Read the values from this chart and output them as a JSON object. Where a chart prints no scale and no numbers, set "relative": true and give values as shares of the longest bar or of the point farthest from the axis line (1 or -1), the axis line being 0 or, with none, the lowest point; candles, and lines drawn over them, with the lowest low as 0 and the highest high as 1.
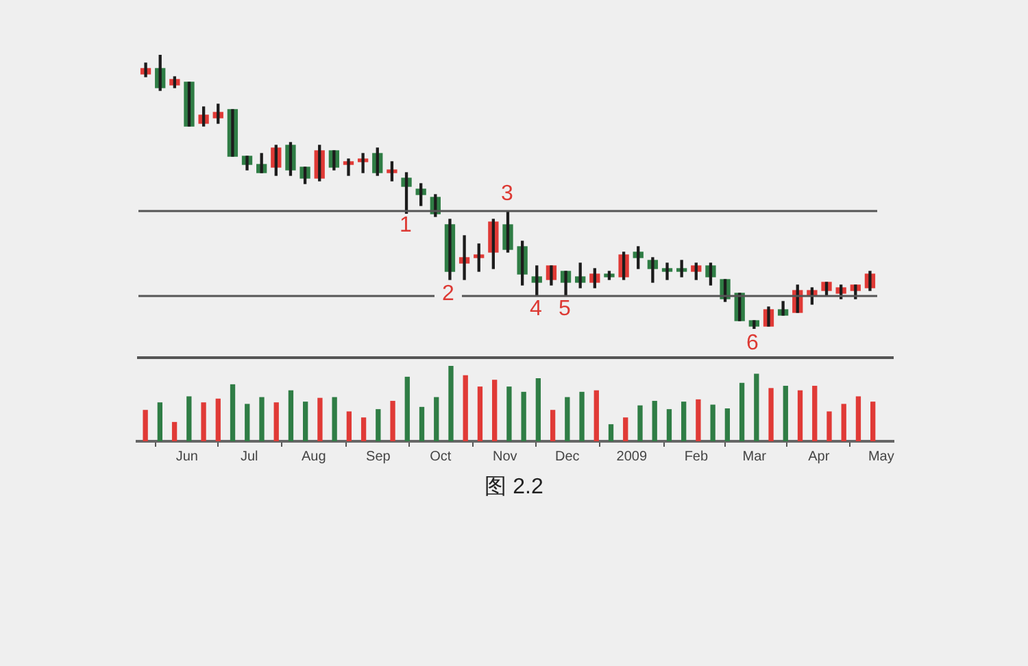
{
  "chart_data": [
    {
      "type": "candlestick",
      "relative": true,
      "tick_labels": false,
      "categories": [
        null,
        null,
        null,
        null,
        null,
        null,
        null,
        null,
        null,
        null,
        null,
        null,
        null,
        null,
        null,
        null,
        null,
        null,
        null,
        null,
        null,
        null,
        null,
        null,
        null,
        null,
        null,
        null,
        null,
        null,
        null,
        null,
        null,
        null,
        null,
        null,
        null,
        null,
        null,
        null,
        null,
        null,
        null,
        null,
        null,
        null,
        null,
        null,
        null,
        null,
        null
      ],
      "ohlc": [
        [
          0.93,
          0.97,
          0.92,
          0.95
        ],
        [
          0.95,
          1.0,
          0.87,
          0.88
        ],
        [
          0.89,
          0.92,
          0.88,
          0.91
        ],
        [
          0.9,
          0.9,
          0.74,
          0.74
        ],
        [
          0.75,
          0.81,
          0.74,
          0.78
        ],
        [
          0.77,
          0.82,
          0.75,
          0.79
        ],
        [
          0.8,
          0.8,
          0.63,
          0.63
        ],
        [
          0.63,
          0.63,
          0.58,
          0.6
        ],
        [
          0.6,
          0.64,
          0.57,
          0.57
        ],
        [
          0.59,
          0.67,
          0.56,
          0.66
        ],
        [
          0.67,
          0.68,
          0.56,
          0.58
        ],
        [
          0.59,
          0.59,
          0.53,
          0.55
        ],
        [
          0.55,
          0.67,
          0.54,
          0.65
        ],
        [
          0.65,
          0.65,
          0.58,
          0.59
        ],
        [
          0.6,
          0.62,
          0.56,
          0.61
        ],
        [
          0.61,
          0.64,
          0.57,
          0.62
        ],
        [
          0.64,
          0.66,
          0.56,
          0.57
        ],
        [
          0.57,
          0.61,
          0.54,
          0.58
        ],
        [
          0.55,
          0.57,
          0.42,
          0.52
        ],
        [
          0.51,
          0.53,
          0.45,
          0.49
        ],
        [
          0.48,
          0.49,
          0.41,
          0.42
        ],
        [
          0.38,
          0.4,
          0.18,
          0.21
        ],
        [
          0.24,
          0.34,
          0.18,
          0.26
        ],
        [
          0.26,
          0.31,
          0.21,
          0.27
        ],
        [
          0.28,
          0.4,
          0.22,
          0.39
        ],
        [
          0.38,
          0.43,
          0.28,
          0.29
        ],
        [
          0.3,
          0.32,
          0.16,
          0.2
        ],
        [
          0.19,
          0.23,
          0.12,
          0.17
        ],
        [
          0.18,
          0.23,
          0.16,
          0.23
        ],
        [
          0.21,
          0.21,
          0.12,
          0.17
        ],
        [
          0.19,
          0.24,
          0.15,
          0.17
        ],
        [
          0.17,
          0.22,
          0.15,
          0.2
        ],
        [
          0.2,
          0.21,
          0.18,
          0.19
        ],
        [
          0.19,
          0.28,
          0.18,
          0.27
        ],
        [
          0.28,
          0.3,
          0.22,
          0.26
        ],
        [
          0.25,
          0.26,
          0.17,
          0.22
        ],
        [
          0.22,
          0.24,
          0.18,
          0.21
        ],
        [
          0.22,
          0.25,
          0.19,
          0.21
        ],
        [
          0.21,
          0.24,
          0.18,
          0.23
        ],
        [
          0.23,
          0.24,
          0.16,
          0.19
        ],
        [
          0.18,
          0.18,
          0.1,
          0.11
        ],
        [
          0.13,
          0.13,
          0.03,
          0.03
        ],
        [
          0.03,
          0.03,
          0.0,
          0.01
        ],
        [
          0.01,
          0.08,
          0.01,
          0.07
        ],
        [
          0.07,
          0.1,
          0.05,
          0.05
        ],
        [
          0.06,
          0.16,
          0.06,
          0.14
        ],
        [
          0.12,
          0.15,
          0.09,
          0.14
        ],
        [
          0.14,
          0.17,
          0.12,
          0.17
        ],
        [
          0.13,
          0.16,
          0.11,
          0.15
        ],
        [
          0.14,
          0.16,
          0.11,
          0.16
        ],
        [
          0.15,
          0.21,
          0.14,
          0.2
        ]
      ],
      "colors": [
        "#e03a36",
        "#2f7d45",
        "#e03a36",
        "#2f7d45",
        "#e03a36",
        "#e03a36",
        "#2f7d45",
        "#2f7d45",
        "#2f7d45",
        "#e03a36",
        "#2f7d45",
        "#2f7d45",
        "#e03a36",
        "#2f7d45",
        "#e03a36",
        "#e03a36",
        "#2f7d45",
        "#e03a36",
        "#2f7d45",
        "#2f7d45",
        "#2f7d45",
        "#2f7d45",
        "#e03a36",
        "#e03a36",
        "#e03a36",
        "#2f7d45",
        "#2f7d45",
        "#2f7d45",
        "#e03a36",
        "#2f7d45",
        "#2f7d45",
        "#e03a36",
        "#2f7d45",
        "#e03a36",
        "#2f7d45",
        "#2f7d45",
        "#2f7d45",
        "#2f7d45",
        "#e03a36",
        "#2f7d45",
        "#2f7d45",
        "#2f7d45",
        "#2f7d45",
        "#e03a36",
        "#2f7d45",
        "#e03a36",
        "#e03a36",
        "#e03a36",
        "#e03a36",
        "#e03a36",
        "#e03a36"
      ],
      "ref_lines": [
        {
          "axis": "y",
          "value": 0.43,
          "color": "#555555"
        },
        {
          "axis": "y",
          "value": 0.12,
          "color": "#555555"
        }
      ],
      "annotations": [
        "1",
        "2",
        "3",
        "4",
        "5",
        "6"
      ]
    },
    {
      "type": "bar",
      "relative": true,
      "tick_labels": "x",
      "x": [
        "2008-05-12",
        "2008-05-19",
        "2008-05-26",
        "2008-06-02",
        "2008-06-09",
        "2008-06-16",
        "2008-06-23",
        "2008-06-30",
        "2008-07-07",
        "2008-07-14",
        "2008-07-21",
        "2008-07-28",
        "2008-08-04",
        "2008-08-11",
        "2008-08-18",
        "2008-08-25",
        "2008-09-01",
        "2008-09-08",
        "2008-09-15",
        "2008-09-22",
        "2008-09-29",
        "2008-10-06",
        "2008-10-13",
        "2008-10-20",
        "2008-10-27",
        "2008-11-03",
        "2008-11-10",
        "2008-11-17",
        "2008-11-24",
        "2008-12-01",
        "2008-12-08",
        "2008-12-15",
        "2008-12-22",
        "2008-12-29",
        "2009-01-05",
        "2009-01-12",
        "2009-01-19",
        "2009-01-26",
        "2009-02-02",
        "2009-02-09",
        "2009-02-16",
        "2009-02-23",
        "2009-03-02",
        "2009-03-09",
        "2009-03-16",
        "2009-03-23",
        "2009-03-30",
        "2009-04-06",
        "2009-04-13",
        "2009-04-20",
        "2009-04-27"
      ],
      "values": [
        0.41,
        0.51,
        0.25,
        0.59,
        0.51,
        0.56,
        0.75,
        0.49,
        0.58,
        0.51,
        0.67,
        0.52,
        0.57,
        0.58,
        0.39,
        0.31,
        0.42,
        0.53,
        0.85,
        0.45,
        0.58,
        1.0,
        0.87,
        0.72,
        0.81,
        0.72,
        0.65,
        0.83,
        0.41,
        0.58,
        0.65,
        0.67,
        0.22,
        0.31,
        0.47,
        0.53,
        0.42,
        0.52,
        0.55,
        0.48,
        0.43,
        0.77,
        0.89,
        0.7,
        0.73,
        0.67,
        0.73,
        0.39,
        0.49,
        0.59,
        0.52
      ],
      "colors": [
        "#e03a36",
        "#2f7d45",
        "#e03a36",
        "#2f7d45",
        "#e03a36",
        "#e03a36",
        "#2f7d45",
        "#2f7d45",
        "#2f7d45",
        "#e03a36",
        "#2f7d45",
        "#2f7d45",
        "#e03a36",
        "#2f7d45",
        "#e03a36",
        "#e03a36",
        "#2f7d45",
        "#e03a36",
        "#2f7d45",
        "#2f7d45",
        "#2f7d45",
        "#2f7d45",
        "#e03a36",
        "#e03a36",
        "#e03a36",
        "#2f7d45",
        "#2f7d45",
        "#2f7d45",
        "#e03a36",
        "#2f7d45",
        "#2f7d45",
        "#e03a36",
        "#2f7d45",
        "#e03a36",
        "#2f7d45",
        "#2f7d45",
        "#2f7d45",
        "#2f7d45",
        "#e03a36",
        "#2f7d45",
        "#2f7d45",
        "#2f7d45",
        "#2f7d45",
        "#e03a36",
        "#2f7d45",
        "#e03a36",
        "#e03a36",
        "#e03a36",
        "#e03a36",
        "#e03a36",
        "#e03a36"
      ],
      "xlim": [
        "2008-05-08",
        "2009-05-07"
      ],
      "xticks": [
        {
          "value": "2008-06-01",
          "label": "Jun"
        },
        {
          "value": "2008-07-01",
          "label": "Jul"
        },
        {
          "value": "2008-08-01",
          "label": "Aug"
        },
        {
          "value": "2008-09-01",
          "label": "Sep"
        },
        {
          "value": "2008-10-01",
          "label": "Oct"
        },
        {
          "value": "2008-11-01",
          "label": "Nov"
        },
        {
          "value": "2008-12-01",
          "label": "Dec"
        },
        {
          "value": "2009-01-01",
          "label": "2009"
        },
        {
          "value": "2009-02-01",
          "label": "Feb"
        },
        {
          "value": "2009-03-01",
          "label": "Mar"
        },
        {
          "value": "2009-04-01",
          "label": "Apr"
        },
        {
          "value": "2009-05-01",
          "label": "May"
        }
      ],
      "annotations": [
        "图 2.2"
      ]
    }
  ]
}
